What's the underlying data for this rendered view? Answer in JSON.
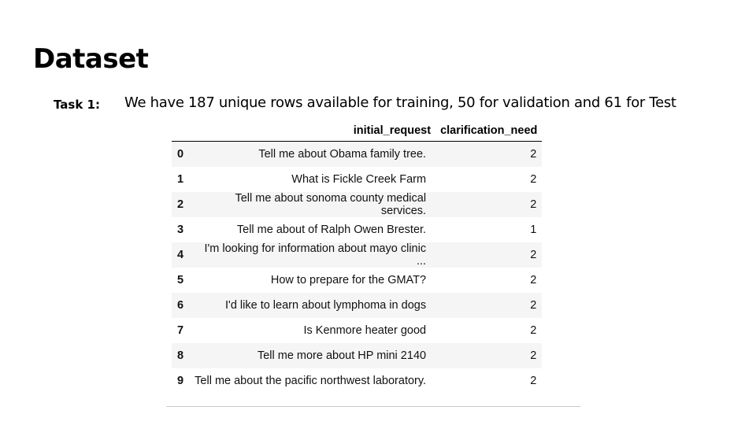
{
  "title": "Dataset",
  "task": {
    "label": "Task 1:",
    "description": "We have 187 unique rows available for training, 50 for validation and 61 for Test"
  },
  "table": {
    "columns": [
      "",
      "initial_request",
      "clarification_need"
    ],
    "rows": [
      {
        "index": "0",
        "initial_request": "Tell me about Obama family tree.",
        "clarification_need": "2"
      },
      {
        "index": "1",
        "initial_request": "What is Fickle Creek Farm",
        "clarification_need": "2"
      },
      {
        "index": "2",
        "initial_request": "Tell me about sonoma county medical services.",
        "clarification_need": "2"
      },
      {
        "index": "3",
        "initial_request": "Tell me about of Ralph Owen Brester.",
        "clarification_need": "1"
      },
      {
        "index": "4",
        "initial_request": "I'm looking for information about mayo clinic ...",
        "clarification_need": "2"
      },
      {
        "index": "5",
        "initial_request": "How to prepare for the GMAT?",
        "clarification_need": "2"
      },
      {
        "index": "6",
        "initial_request": "I'd like to learn about lymphoma in dogs",
        "clarification_need": "2"
      },
      {
        "index": "7",
        "initial_request": "Is Kenmore heater good",
        "clarification_need": "2"
      },
      {
        "index": "8",
        "initial_request": "Tell me more about HP mini 2140",
        "clarification_need": "2"
      },
      {
        "index": "9",
        "initial_request": "Tell me about the pacific northwest laboratory.",
        "clarification_need": "2"
      }
    ]
  }
}
